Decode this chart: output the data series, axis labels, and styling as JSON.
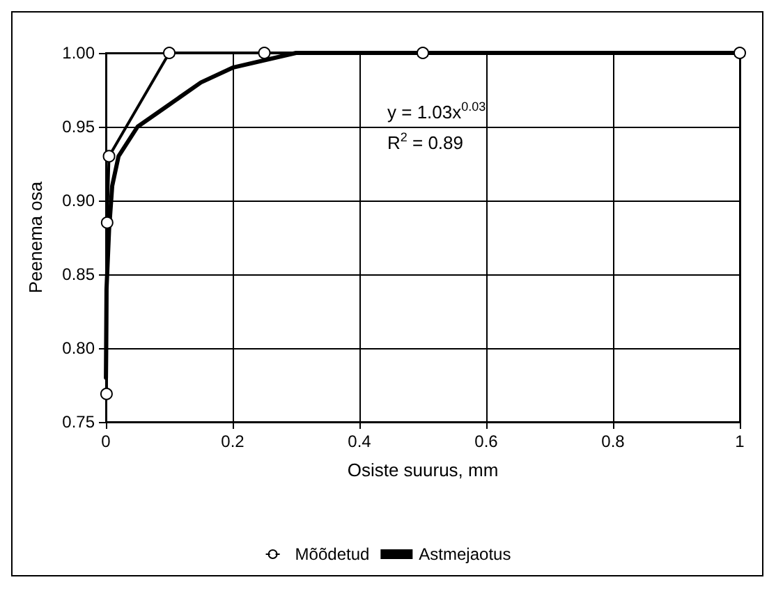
{
  "chart_data": {
    "type": "line",
    "xlabel": "Osiste suurus, mm",
    "ylabel": "Peenema osa",
    "xlim": [
      0,
      1
    ],
    "xticks": [
      0,
      0.2,
      0.4,
      0.6,
      0.8,
      1
    ],
    "ylim": [
      0.75,
      1
    ],
    "yticks": [
      {
        "value": 0.75,
        "label": "0.75"
      },
      {
        "value": 0.8,
        "label": "0.80"
      },
      {
        "value": 0.85,
        "label": "0.85"
      },
      {
        "value": 0.9,
        "label": "0.90"
      },
      {
        "value": 0.95,
        "label": "0.95"
      },
      {
        "value": 1,
        "label": "1.00"
      }
    ],
    "grid": true,
    "legend": "bottom",
    "annotations": [
      "y = 1.03x$^{0.03}$",
      "R$^{2}$ = 0.89"
    ],
    "series": [
      {
        "name": "Mõõdetud",
        "color": "#000000",
        "marker": "circle",
        "x": [
          0.001,
          0.002,
          0.005,
          0.1,
          0.25,
          0.5,
          1
        ],
        "values": [
          0.769,
          0.885,
          0.93,
          1.0,
          1.0,
          1.0,
          1.0
        ]
      },
      {
        "name": "Astmejaotus",
        "color": "#000000",
        "marker": "none",
        "x": [
          0.0001,
          0.001,
          0.005,
          0.01,
          0.02,
          0.05,
          0.1,
          0.15,
          0.2,
          0.3,
          1
        ],
        "values": [
          0.78,
          0.84,
          0.88,
          0.91,
          0.93,
          0.95,
          0.965,
          0.98,
          0.99,
          1.0,
          1.0
        ]
      }
    ]
  }
}
